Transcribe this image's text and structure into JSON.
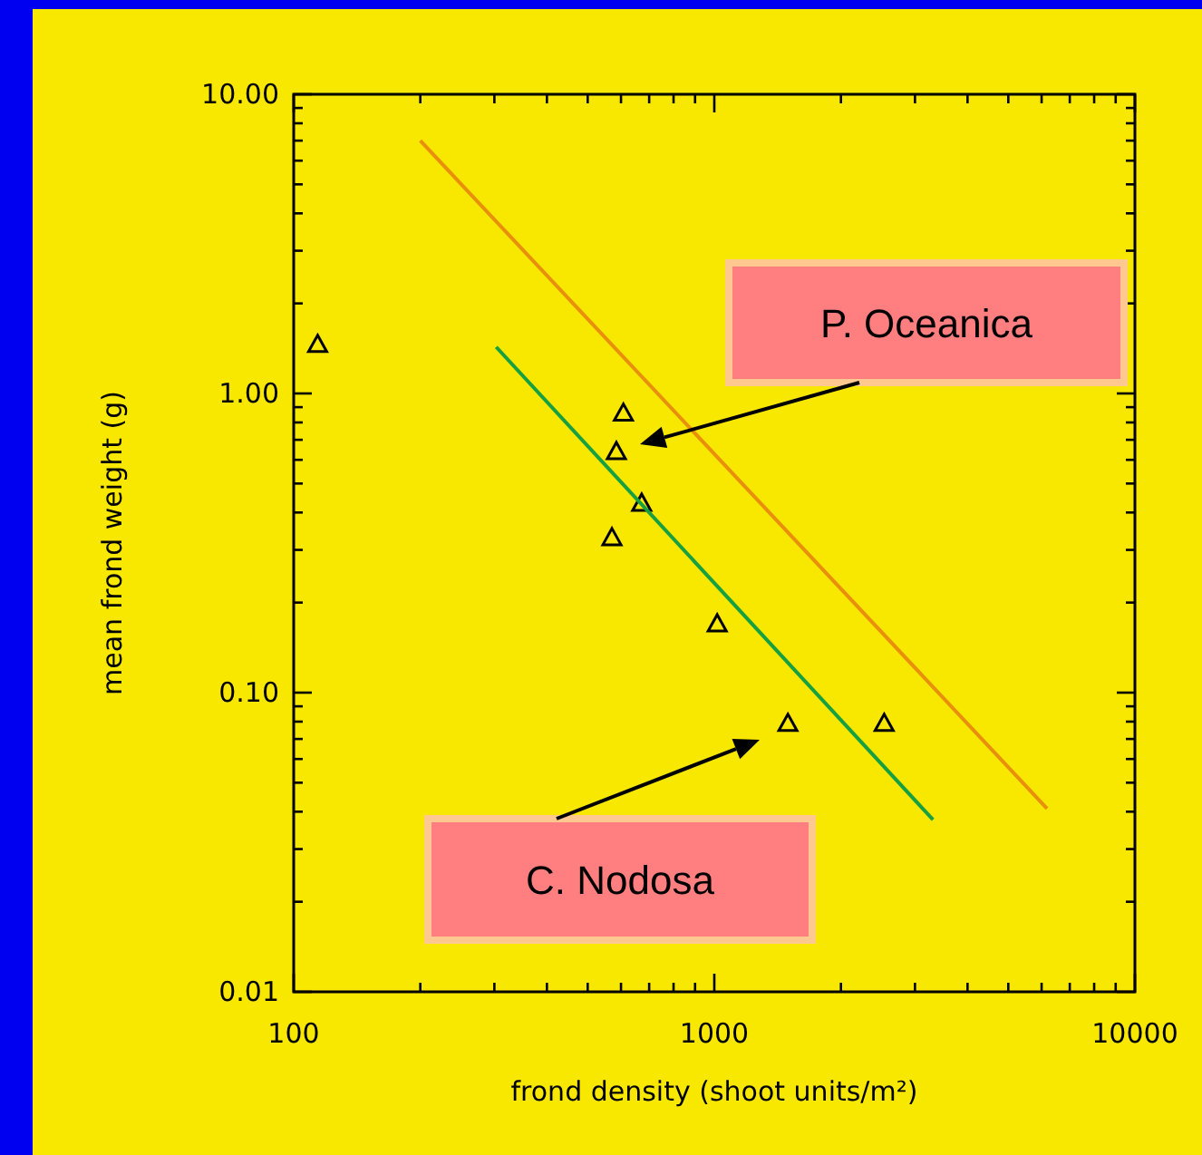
{
  "chart_data": {
    "type": "scatter",
    "xlabel": "frond density (shoot units/m²)",
    "ylabel": "mean frond weight (g)",
    "log": "xy",
    "xlim": [
      100,
      10000
    ],
    "ylim": [
      0.01,
      10
    ],
    "xticks": [
      100,
      {
        "value": 200,
        "label": null
      },
      {
        "value": 300,
        "label": null
      },
      {
        "value": 400,
        "label": null
      },
      {
        "value": 500,
        "label": null
      },
      {
        "value": 600,
        "label": null
      },
      {
        "value": 700,
        "label": null
      },
      {
        "value": 800,
        "label": null
      },
      {
        "value": 900,
        "label": null
      },
      1000,
      {
        "value": 2000,
        "label": null
      },
      {
        "value": 3000,
        "label": null
      },
      {
        "value": 4000,
        "label": null
      },
      {
        "value": 5000,
        "label": null
      },
      {
        "value": 6000,
        "label": null
      },
      {
        "value": 7000,
        "label": null
      },
      {
        "value": 8000,
        "label": null
      },
      {
        "value": 9000,
        "label": null
      },
      10000
    ],
    "yticks": [
      {
        "value": 0.01,
        "label": "0.01"
      },
      {
        "value": 0.02,
        "label": null
      },
      {
        "value": 0.03,
        "label": null
      },
      {
        "value": 0.04,
        "label": null
      },
      {
        "value": 0.05,
        "label": null
      },
      {
        "value": 0.06,
        "label": null
      },
      {
        "value": 0.07,
        "label": null
      },
      {
        "value": 0.08,
        "label": null
      },
      {
        "value": 0.09,
        "label": null
      },
      {
        "value": 0.1,
        "label": "0.10"
      },
      {
        "value": 0.2,
        "label": null
      },
      {
        "value": 0.3,
        "label": null
      },
      {
        "value": 0.4,
        "label": null
      },
      {
        "value": 0.5,
        "label": null
      },
      {
        "value": 0.6,
        "label": null
      },
      {
        "value": 0.7,
        "label": null
      },
      {
        "value": 0.8,
        "label": null
      },
      {
        "value": 0.9,
        "label": null
      },
      {
        "value": 1,
        "label": "1.00"
      },
      {
        "value": 2,
        "label": null
      },
      {
        "value": 3,
        "label": null
      },
      {
        "value": 4,
        "label": null
      },
      {
        "value": 5,
        "label": null
      },
      {
        "value": 6,
        "label": null
      },
      {
        "value": 7,
        "label": null
      },
      {
        "value": 8,
        "label": null
      },
      {
        "value": 9,
        "label": null
      },
      {
        "value": 10,
        "label": "10.00"
      }
    ],
    "grid": false,
    "series": [
      {
        "type": "scatter",
        "color": "#000000",
        "marker": "triangle",
        "x": [
          114,
          608,
          585,
          672,
          571,
          1016,
          1496,
          2534
        ],
        "values": [
          1.46,
          0.86,
          0.64,
          0.43,
          0.33,
          0.17,
          0.079,
          0.079
        ]
      },
      {
        "type": "line",
        "color": "#e8900c",
        "marker": "none",
        "x": [
          200,
          6180
        ],
        "values": [
          7.0,
          0.041
        ]
      },
      {
        "type": "line",
        "color": "#18a040",
        "marker": "none",
        "x": [
          303,
          3311
        ],
        "values": [
          1.43,
          0.0376
        ]
      }
    ],
    "annotations": [
      "P. Oceanica",
      "C. Nodosa"
    ]
  }
}
